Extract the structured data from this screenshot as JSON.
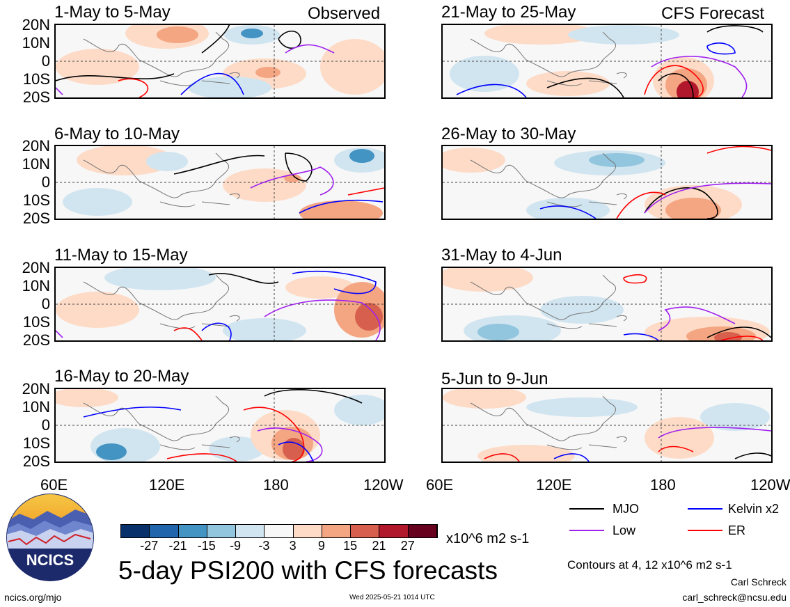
{
  "panels": [
    {
      "title": "1-May to 5-May",
      "tag": "Observed"
    },
    {
      "title": "6-May to 10-May",
      "tag": ""
    },
    {
      "title": "11-May to 15-May",
      "tag": ""
    },
    {
      "title": "16-May to 20-May",
      "tag": ""
    },
    {
      "title": "21-May to 25-May",
      "tag": "CFS Forecast"
    },
    {
      "title": "26-May to 30-May",
      "tag": ""
    },
    {
      "title": "31-May to 4-Jun",
      "tag": ""
    },
    {
      "title": "5-Jun to 9-Jun",
      "tag": ""
    }
  ],
  "lat_labels": [
    "20N",
    "10N",
    "0",
    "10S",
    "20S"
  ],
  "lon_labels": [
    "60E",
    "120E",
    "180",
    "120W"
  ],
  "legend": {
    "mjo": "MJO",
    "kelvin": "Kelvin x2",
    "low": "Low",
    "er": "ER",
    "colors": {
      "mjo": "#000000",
      "kelvin": "#0000ff",
      "low": "#a020f0",
      "er": "#ff0000"
    }
  },
  "colorbar": {
    "labels": [
      "-27",
      "-21",
      "-15",
      "-9",
      "-3",
      "3",
      "9",
      "15",
      "21",
      "27"
    ],
    "units": "x10^6 m2 s-1",
    "colors": [
      "#08306b",
      "#2166ac",
      "#4393c3",
      "#92c5de",
      "#d1e5f0",
      "#f7f7f7",
      "#fddbc7",
      "#f4a582",
      "#d6604d",
      "#b2182b",
      "#67001f"
    ]
  },
  "main_title": "5-day PSI200 with CFS forecasts",
  "contour_note": "Contours at 4, 12 x10^6 m2 s-1",
  "author": "Carl Schreck",
  "email": "carl_schreck@ncsu.edu",
  "site": "ncics.org/mjo",
  "timestamp": "Wed 2025-05-21 1014 UTC",
  "logo_text": "NCICS"
}
